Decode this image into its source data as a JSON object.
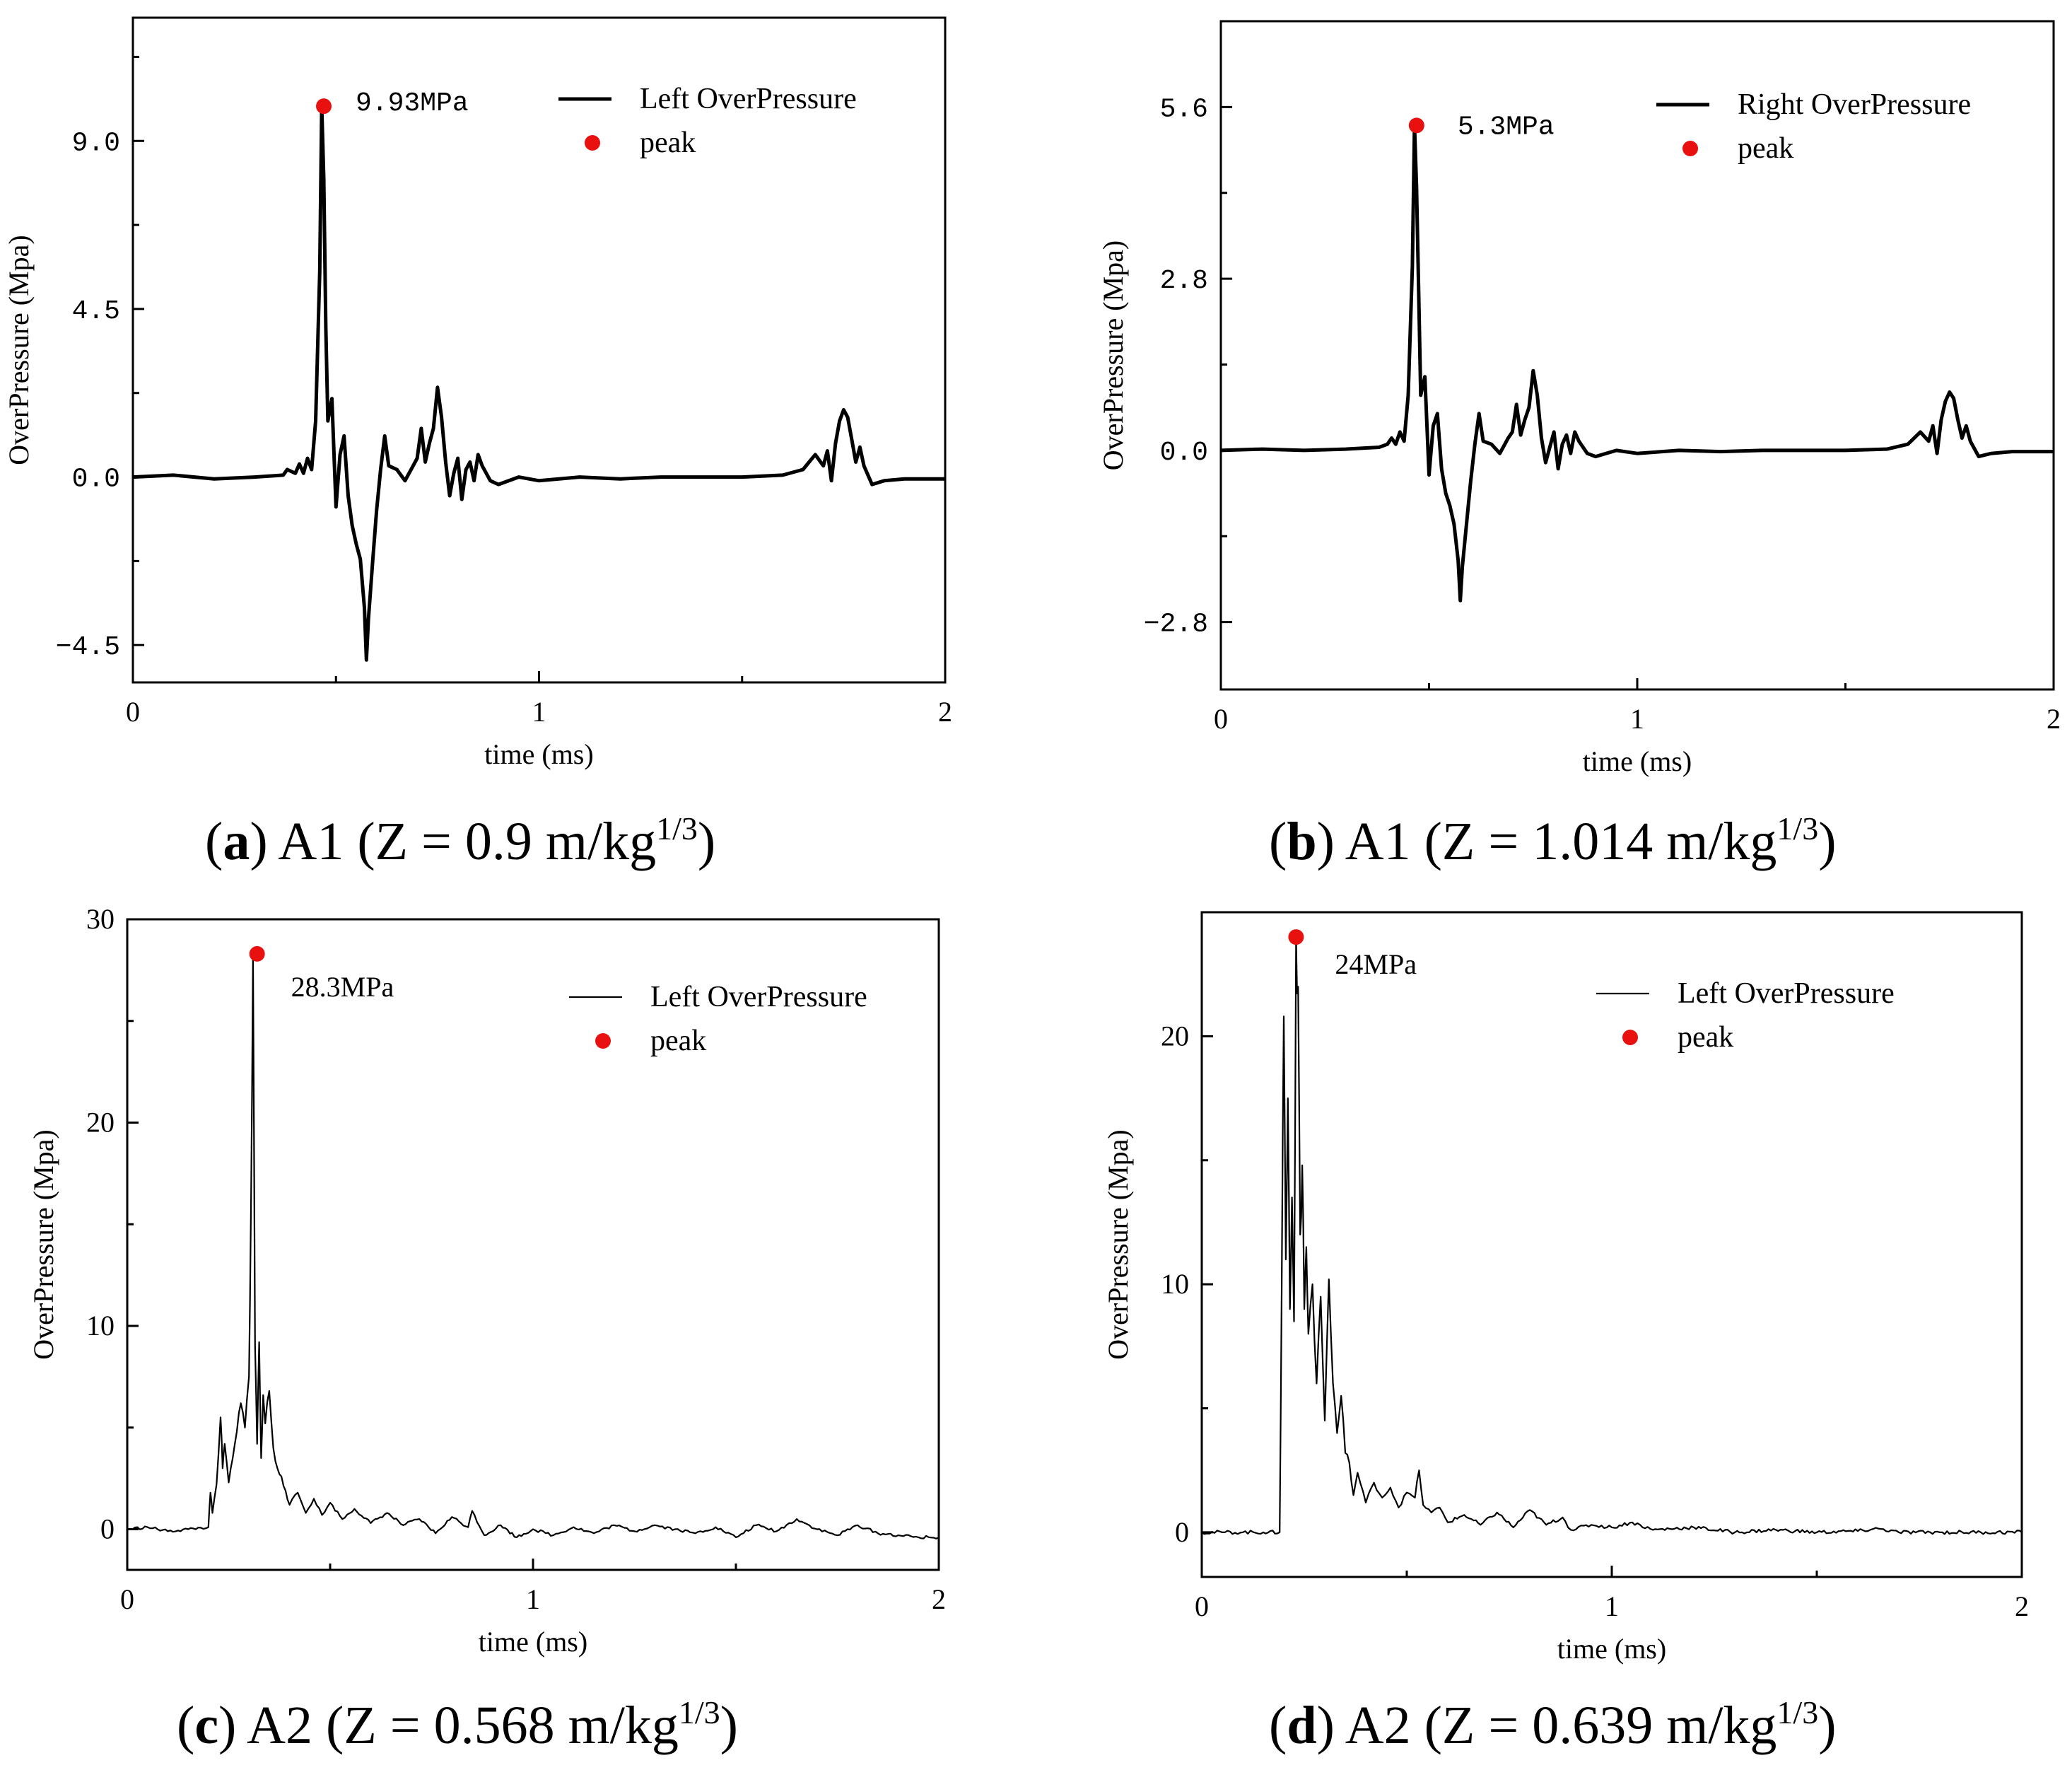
{
  "chart_data": [
    {
      "id": "a",
      "type": "line",
      "caption_letter": "a",
      "caption_rest": " A1 (Z = 0.9 m/kg",
      "caption_sup": "1/3",
      "caption_close": ")",
      "xlabel": "time (ms)",
      "ylabel": "OverPressure (Mpa)",
      "xlim": [
        0,
        2
      ],
      "ylim": [
        -5.5,
        12.3
      ],
      "xticks": [
        0,
        1,
        2
      ],
      "xtick_labels": [
        "0",
        "1",
        "2"
      ],
      "yticks": [
        -4.5,
        0,
        4.5,
        9
      ],
      "ytick_labels": [
        "-4.5",
        "0.0",
        "4.5",
        "9.0"
      ],
      "line_style": "thick",
      "series": [
        {
          "name": "Left OverPressure",
          "x": [
            0,
            0.1,
            0.2,
            0.3,
            0.37,
            0.38,
            0.4,
            0.41,
            0.42,
            0.43,
            0.44,
            0.45,
            0.46,
            0.465,
            0.47,
            0.475,
            0.48,
            0.49,
            0.5,
            0.51,
            0.52,
            0.53,
            0.54,
            0.55,
            0.56,
            0.57,
            0.575,
            0.58,
            0.59,
            0.6,
            0.61,
            0.62,
            0.63,
            0.65,
            0.67,
            0.69,
            0.7,
            0.71,
            0.72,
            0.73,
            0.74,
            0.75,
            0.76,
            0.77,
            0.78,
            0.79,
            0.8,
            0.81,
            0.82,
            0.83,
            0.84,
            0.85,
            0.86,
            0.88,
            0.9,
            0.95,
            1.0,
            1.1,
            1.2,
            1.3,
            1.4,
            1.5,
            1.6,
            1.65,
            1.68,
            1.7,
            1.71,
            1.72,
            1.73,
            1.74,
            1.75,
            1.76,
            1.77,
            1.78,
            1.79,
            1.8,
            1.82,
            1.85,
            1.9,
            2.0
          ],
          "y": [
            0,
            0.05,
            -0.05,
            0.0,
            0.05,
            0.2,
            0.1,
            0.35,
            0.1,
            0.5,
            0.2,
            1.5,
            5.5,
            9.93,
            8.0,
            4.0,
            1.5,
            2.1,
            -0.8,
            0.6,
            1.1,
            -0.5,
            -1.3,
            -1.8,
            -2.2,
            -3.5,
            -4.9,
            -3.8,
            -2.3,
            -0.9,
            0.2,
            1.1,
            0.3,
            0.2,
            -0.1,
            0.3,
            0.5,
            1.3,
            0.4,
            0.9,
            1.3,
            2.4,
            1.6,
            0.4,
            -0.5,
            0.1,
            0.5,
            -0.6,
            0.2,
            0.4,
            -0.1,
            0.6,
            0.3,
            -0.1,
            -0.2,
            0.0,
            -0.1,
            0.0,
            -0.05,
            0.0,
            0.0,
            0.0,
            0.05,
            0.2,
            0.6,
            0.3,
            0.7,
            -0.1,
            0.9,
            1.5,
            1.8,
            1.6,
            1.0,
            0.4,
            0.8,
            0.3,
            -0.2,
            -0.1,
            -0.05,
            -0.05
          ]
        }
      ],
      "peak": {
        "x": 0.47,
        "y": 9.93,
        "label": "9.93MPa",
        "label_style": "mono"
      },
      "legend": {
        "line_label": "Left OverPressure",
        "marker_label": "peak",
        "placement": "top-right"
      }
    },
    {
      "id": "b",
      "type": "line",
      "caption_letter": "b",
      "caption_rest": " A1 (Z = 1.014 m/kg",
      "caption_sup": "1/3",
      "caption_close": ")",
      "xlabel": "time (ms)",
      "ylabel": "OverPressure (Mpa)",
      "xlim": [
        0,
        2
      ],
      "ylim": [
        -3.9,
        7.0
      ],
      "xticks": [
        0,
        1,
        2
      ],
      "xtick_labels": [
        "0",
        "1",
        "2"
      ],
      "yticks": [
        -2.8,
        0,
        2.8,
        5.6
      ],
      "ytick_labels": [
        "-2.8",
        "0.0",
        "2.8",
        "5.6"
      ],
      "line_style": "thick",
      "series": [
        {
          "name": "Right OverPressure",
          "x": [
            0,
            0.1,
            0.2,
            0.3,
            0.38,
            0.4,
            0.41,
            0.42,
            0.43,
            0.44,
            0.45,
            0.46,
            0.465,
            0.47,
            0.475,
            0.48,
            0.49,
            0.5,
            0.51,
            0.52,
            0.53,
            0.54,
            0.55,
            0.56,
            0.57,
            0.575,
            0.58,
            0.59,
            0.6,
            0.61,
            0.62,
            0.63,
            0.65,
            0.67,
            0.69,
            0.7,
            0.71,
            0.72,
            0.73,
            0.74,
            0.75,
            0.76,
            0.77,
            0.78,
            0.79,
            0.8,
            0.81,
            0.82,
            0.83,
            0.84,
            0.85,
            0.86,
            0.88,
            0.9,
            0.95,
            1.0,
            1.1,
            1.2,
            1.3,
            1.4,
            1.5,
            1.6,
            1.65,
            1.68,
            1.7,
            1.71,
            1.72,
            1.73,
            1.74,
            1.75,
            1.76,
            1.77,
            1.78,
            1.79,
            1.8,
            1.82,
            1.85,
            1.9,
            2.0
          ],
          "y": [
            0,
            0.02,
            0.0,
            0.02,
            0.05,
            0.1,
            0.2,
            0.1,
            0.3,
            0.15,
            0.9,
            3.0,
            5.3,
            4.3,
            2.6,
            0.9,
            1.2,
            -0.4,
            0.4,
            0.6,
            -0.3,
            -0.7,
            -0.9,
            -1.2,
            -1.8,
            -2.45,
            -1.9,
            -1.2,
            -0.5,
            0.1,
            0.6,
            0.15,
            0.1,
            -0.05,
            0.2,
            0.3,
            0.75,
            0.25,
            0.5,
            0.7,
            1.3,
            0.9,
            0.2,
            -0.2,
            0.05,
            0.3,
            -0.3,
            0.1,
            0.25,
            -0.05,
            0.3,
            0.15,
            -0.05,
            -0.1,
            0.0,
            -0.05,
            0.0,
            -0.02,
            0.0,
            0.0,
            0.0,
            0.02,
            0.1,
            0.3,
            0.15,
            0.4,
            -0.05,
            0.5,
            0.8,
            0.95,
            0.85,
            0.5,
            0.2,
            0.4,
            0.15,
            -0.1,
            -0.05,
            -0.02,
            -0.02
          ]
        }
      ],
      "peak": {
        "x": 0.47,
        "y": 5.3,
        "label": "5.3MPa",
        "label_style": "mono"
      },
      "legend": {
        "line_label": "Right OverPressure",
        "marker_label": "peak",
        "placement": "top-right"
      }
    },
    {
      "id": "c",
      "type": "line",
      "caption_letter": "c",
      "caption_rest": " A2 (Z = 0.568 m/kg",
      "caption_sup": "1/3",
      "caption_close": ")",
      "xlabel": "time (ms)",
      "ylabel": "OverPressure (Mpa)",
      "xlim": [
        0,
        2
      ],
      "ylim": [
        -2,
        30
      ],
      "xticks": [
        0,
        1,
        2
      ],
      "xtick_labels": [
        "0",
        "1",
        "2"
      ],
      "yticks": [
        0,
        10,
        20,
        30
      ],
      "ytick_labels": [
        "0",
        "10",
        "20",
        "30"
      ],
      "line_style": "thin",
      "series": [
        {
          "name": "Left OverPressure",
          "x": [
            0,
            0.05,
            0.1,
            0.15,
            0.2,
            0.205,
            0.21,
            0.22,
            0.23,
            0.235,
            0.24,
            0.25,
            0.26,
            0.27,
            0.28,
            0.29,
            0.3,
            0.305,
            0.31,
            0.315,
            0.32,
            0.325,
            0.33,
            0.335,
            0.34,
            0.35,
            0.36,
            0.37,
            0.38,
            0.39,
            0.4,
            0.42,
            0.44,
            0.46,
            0.48,
            0.5,
            0.53,
            0.56,
            0.6,
            0.64,
            0.68,
            0.72,
            0.76,
            0.8,
            0.84,
            0.85,
            0.88,
            0.92,
            0.96,
            1.0,
            1.05,
            1.1,
            1.15,
            1.2,
            1.25,
            1.3,
            1.35,
            1.4,
            1.45,
            1.5,
            1.55,
            1.6,
            1.65,
            1.7,
            1.75,
            1.8,
            1.85,
            1.9,
            1.95,
            2.0
          ],
          "y": [
            0,
            0.1,
            -0.1,
            0.0,
            0.1,
            1.8,
            0.8,
            2.2,
            5.5,
            3.0,
            4.2,
            2.3,
            3.5,
            4.8,
            6.2,
            5.0,
            7.5,
            16.0,
            28.3,
            9.0,
            4.2,
            9.2,
            3.5,
            6.6,
            5.2,
            6.8,
            4.0,
            3.0,
            2.6,
            1.9,
            1.2,
            1.8,
            0.8,
            1.5,
            0.7,
            1.3,
            0.5,
            1.0,
            0.3,
            0.8,
            0.2,
            0.5,
            -0.2,
            0.6,
            0.1,
            0.9,
            -0.3,
            0.2,
            -0.4,
            0.0,
            -0.3,
            0.1,
            -0.2,
            0.2,
            -0.1,
            0.2,
            0.0,
            -0.2,
            0.1,
            -0.4,
            0.2,
            -0.1,
            0.5,
            0.0,
            -0.3,
            0.2,
            -0.2,
            -0.3,
            -0.4,
            -0.4
          ]
        }
      ],
      "peak": {
        "x": 0.32,
        "y": 28.3,
        "label": "28.3MPa",
        "label_style": "serif"
      },
      "legend": {
        "line_label": "Left OverPressure",
        "marker_label": "peak",
        "placement": "top-right"
      }
    },
    {
      "id": "d",
      "type": "line",
      "caption_letter": "d",
      "caption_rest": " A2 (Z = 0.639 m/kg",
      "caption_sup": "1/3",
      "caption_close": ")",
      "xlabel": "time (ms)",
      "ylabel": "OverPressure (Mpa)",
      "xlim": [
        0,
        2
      ],
      "ylim": [
        -1.8,
        25
      ],
      "xticks": [
        0,
        1,
        2
      ],
      "xtick_labels": [
        "0",
        "1",
        "2"
      ],
      "yticks": [
        0,
        10,
        20
      ],
      "ytick_labels": [
        "0",
        "10",
        "20"
      ],
      "line_style": "thin",
      "series": [
        {
          "name": "Left OverPressure",
          "x": [
            0,
            0.05,
            0.1,
            0.15,
            0.19,
            0.195,
            0.2,
            0.205,
            0.21,
            0.215,
            0.22,
            0.225,
            0.23,
            0.235,
            0.24,
            0.245,
            0.25,
            0.255,
            0.26,
            0.27,
            0.28,
            0.29,
            0.3,
            0.31,
            0.32,
            0.33,
            0.34,
            0.35,
            0.36,
            0.37,
            0.38,
            0.4,
            0.42,
            0.44,
            0.46,
            0.48,
            0.5,
            0.52,
            0.53,
            0.54,
            0.56,
            0.58,
            0.6,
            0.64,
            0.68,
            0.72,
            0.76,
            0.8,
            0.84,
            0.88,
            0.9,
            0.95,
            1.0,
            1.05,
            1.1,
            1.2,
            1.3,
            1.4,
            1.5,
            1.6,
            1.65,
            1.7,
            1.8,
            1.9,
            2.0
          ],
          "y": [
            0,
            0.0,
            0.0,
            0.0,
            0.0,
            10.0,
            20.8,
            11.0,
            17.5,
            9.0,
            13.5,
            8.5,
            24.0,
            22.0,
            12.0,
            14.8,
            9.0,
            11.5,
            8.0,
            10.0,
            6.0,
            9.5,
            4.5,
            10.2,
            6.0,
            4.0,
            5.5,
            3.2,
            2.8,
            1.5,
            2.4,
            1.2,
            2.0,
            1.4,
            1.8,
            1.0,
            1.6,
            1.4,
            2.5,
            1.1,
            0.8,
            1.0,
            0.4,
            0.7,
            0.3,
            0.8,
            0.2,
            0.9,
            0.3,
            0.6,
            0.1,
            0.3,
            0.2,
            0.4,
            0.1,
            0.2,
            0.0,
            0.1,
            0.0,
            0.05,
            0.15,
            0.0,
            0.0,
            0.0,
            0.0
          ]
        }
      ],
      "peak": {
        "x": 0.23,
        "y": 24.0,
        "label": "24MPa",
        "label_style": "serif"
      },
      "legend": {
        "line_label": "Left OverPressure",
        "marker_label": "peak",
        "placement": "top-right"
      }
    }
  ],
  "colors": {
    "line": "#000000",
    "peak": "#e8110f",
    "axis": "#000000"
  }
}
